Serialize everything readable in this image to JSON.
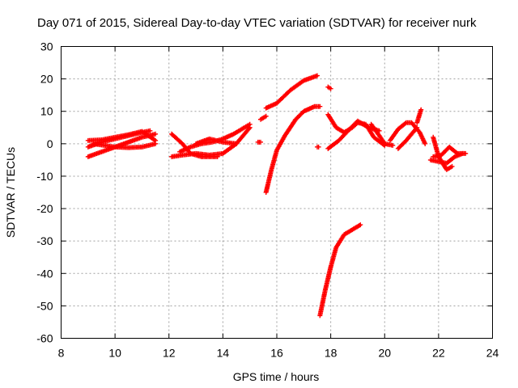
{
  "chart_data": {
    "type": "scatter",
    "title": "Day 071 of 2015, Sidereal Day-to-day VTEC variation (SDTVAR) for receiver nurk",
    "xlabel": "GPS time / hours",
    "ylabel": "SDTVAR / TECUs",
    "xlim": [
      8,
      24
    ],
    "ylim": [
      -60,
      30
    ],
    "xticks": [
      "8",
      "10",
      "12",
      "14",
      "16",
      "18",
      "20",
      "22",
      "24"
    ],
    "yticks": [
      "30",
      "20",
      "10",
      "0",
      "-10",
      "-20",
      "-30",
      "-40",
      "-50",
      "-60"
    ],
    "grid": true,
    "marker": "plus",
    "color": "#ff0000",
    "series": [
      {
        "segments": [
          {
            "x": [
              9.0,
              9.5,
              10.0,
              10.5,
              11.0,
              11.5
            ],
            "y": [
              1.0,
              1.2,
              2.0,
              2.8,
              3.8,
              1.0
            ]
          },
          {
            "x": [
              9.0,
              9.5,
              10.0,
              10.5,
              11.0,
              11.3
            ],
            "y": [
              -1.0,
              0.5,
              1.5,
              2.5,
              3.5,
              4.0
            ]
          },
          {
            "x": [
              9.0,
              9.5,
              10.0,
              10.5,
              11.0,
              11.5
            ],
            "y": [
              -4.0,
              -2.5,
              -1.0,
              0.5,
              2.0,
              3.0
            ]
          },
          {
            "x": [
              9.2,
              9.6,
              10.0,
              10.5,
              11.0,
              11.5
            ],
            "y": [
              0.0,
              -0.5,
              -1.0,
              -1.2,
              -1.0,
              0.0
            ]
          },
          {
            "x": [
              12.1,
              12.5,
              13.0,
              13.5,
              14.0,
              14.5,
              15.0
            ],
            "y": [
              -4.0,
              -3.5,
              -3.0,
              -3.5,
              -3.0,
              0.0,
              5.0
            ]
          },
          {
            "x": [
              12.1,
              12.5,
              12.8,
              13.2,
              13.8
            ],
            "y": [
              3.0,
              0.0,
              -3.0,
              -4.0,
              -4.0
            ]
          },
          {
            "x": [
              12.4,
              12.8,
              13.2,
              13.6,
              14.0,
              14.4,
              14.8,
              15.0
            ],
            "y": [
              -2.5,
              -1.0,
              0.0,
              0.5,
              1.5,
              3.0,
              5.0,
              6.0
            ]
          },
          {
            "x": [
              13.0,
              13.5,
              14.0,
              14.5
            ],
            "y": [
              0.0,
              1.5,
              0.5,
              0.0
            ]
          },
          {
            "x": [
              15.3,
              15.4
            ],
            "y": [
              0.5,
              0.5
            ]
          },
          {
            "x": [
              15.4,
              15.6
            ],
            "y": [
              7.5,
              8.5
            ]
          },
          {
            "x": [
              15.6,
              16.0,
              16.5,
              17.0,
              17.5
            ],
            "y": [
              11.0,
              12.5,
              16.5,
              19.5,
              21.0
            ]
          },
          {
            "x": [
              15.6,
              15.8,
              16.0,
              16.3,
              16.7,
              17.0,
              17.4,
              17.6
            ],
            "y": [
              -15.0,
              -8.0,
              -2.0,
              2.5,
              7.5,
              10.0,
              11.5,
              11.5
            ]
          },
          {
            "x": [
              17.5,
              17.55
            ],
            "y": [
              -1.0,
              -1.0
            ]
          },
          {
            "x": [
              17.9,
              18.0
            ],
            "y": [
              17.5,
              17.0
            ]
          },
          {
            "x": [
              17.6,
              17.8,
              18.0,
              18.2,
              18.5,
              18.8,
              19.1
            ],
            "y": [
              -53.0,
              -45.0,
              -38.0,
              -32.0,
              -28.0,
              -26.5,
              -25.0
            ]
          },
          {
            "x": [
              17.9,
              18.2,
              18.5,
              18.8,
              19.0,
              19.3,
              19.6,
              20.0
            ],
            "y": [
              9.0,
              5.0,
              3.5,
              5.0,
              6.5,
              6.0,
              2.0,
              -0.5
            ]
          },
          {
            "x": [
              17.9,
              18.3,
              18.7,
              19.0,
              19.4,
              19.8
            ],
            "y": [
              -1.5,
              1.0,
              4.5,
              7.0,
              5.0,
              4.0
            ]
          },
          {
            "x": [
              19.5,
              19.8,
              20.0,
              20.3
            ],
            "y": [
              6.0,
              2.5,
              0.0,
              -0.5
            ]
          },
          {
            "x": [
              20.2,
              20.5,
              20.8,
              21.0,
              21.3,
              21.5
            ],
            "y": [
              1.0,
              4.5,
              6.5,
              6.5,
              3.5,
              0.0
            ]
          },
          {
            "x": [
              20.5,
              20.8,
              21.0,
              21.2
            ],
            "y": [
              -1.5,
              1.0,
              3.0,
              5.0
            ]
          },
          {
            "x": [
              21.2,
              21.35
            ],
            "y": [
              6.5,
              10.5
            ]
          },
          {
            "x": [
              21.7,
              22.0,
              22.3,
              22.6,
              22.9
            ],
            "y": [
              -5.0,
              -5.5,
              -6.0,
              -4.0,
              -3.0
            ]
          },
          {
            "x": [
              21.8,
              22.0,
              22.3,
              22.5
            ],
            "y": [
              2.0,
              -4.0,
              -8.0,
              -7.0
            ]
          },
          {
            "x": [
              21.8,
              22.1,
              22.4,
              22.7,
              23.0
            ],
            "y": [
              -4.0,
              -3.5,
              -1.0,
              -3.0,
              -3.0
            ]
          }
        ]
      }
    ]
  }
}
